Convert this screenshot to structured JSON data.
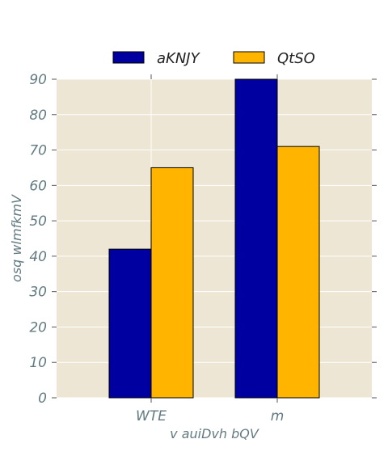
{
  "chart_data": {
    "type": "bar",
    "categories": [
      "WTE",
      "m"
    ],
    "series": [
      {
        "name": "aKNJY",
        "values": [
          42,
          90
        ]
      },
      {
        "name": "QtSO",
        "values": [
          65,
          71
        ]
      }
    ],
    "xlabel": "v auiDvh bQV",
    "ylabel": "osq wlmfkmV",
    "ylim": [
      0,
      90
    ],
    "yticks": [
      0,
      10,
      20,
      30,
      40,
      50,
      60,
      70,
      80,
      90
    ],
    "grid": true,
    "legend_position": "top-center",
    "colors": {
      "series": [
        "#0000a0",
        "#ffb400"
      ],
      "plot_background": "#ede6d5",
      "grid": "#ffffff",
      "text": "#627a82",
      "axis": "#555555"
    }
  }
}
